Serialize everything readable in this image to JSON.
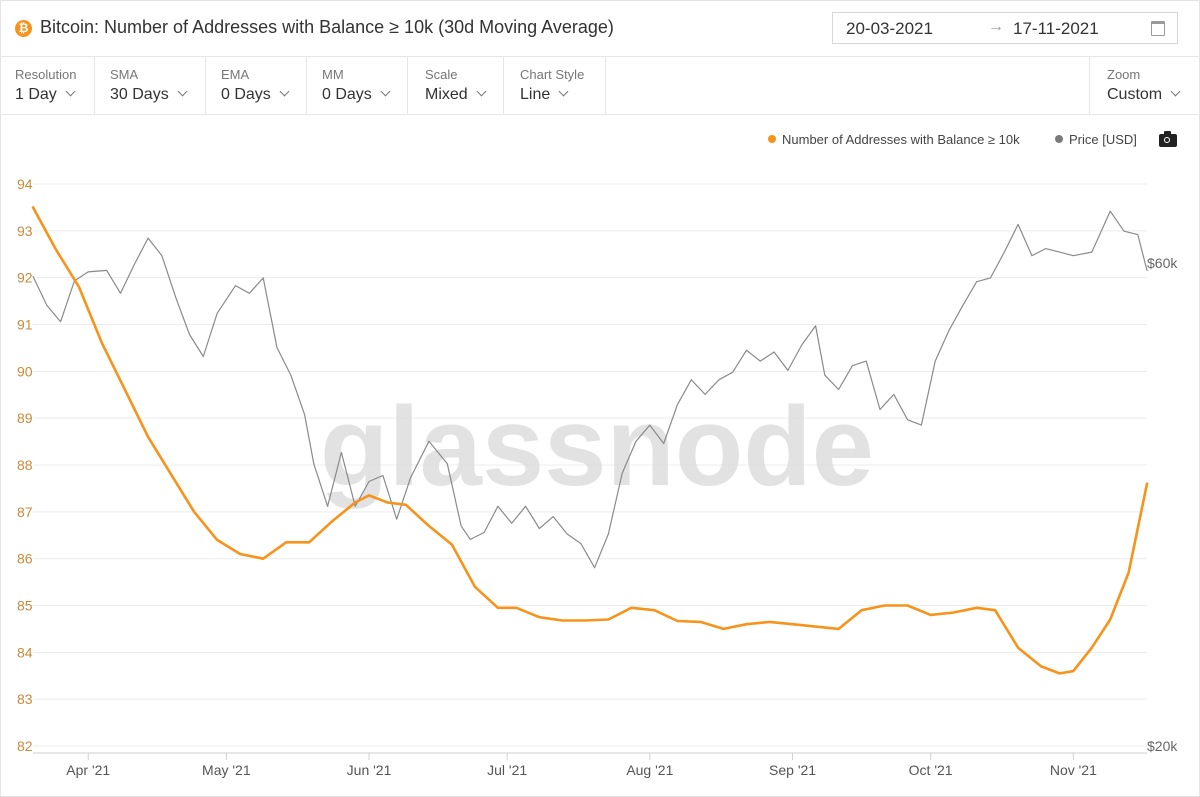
{
  "header": {
    "title": "Bitcoin: Number of Addresses with Balance ≥ 10k (30d Moving Average)",
    "asset_icon": "bitcoin-icon",
    "date_start": "20-03-2021",
    "date_end": "17-11-2021",
    "date_arrow": "→"
  },
  "controls": [
    {
      "label": "Resolution",
      "value": "1 Day"
    },
    {
      "label": "SMA",
      "value": "30 Days"
    },
    {
      "label": "EMA",
      "value": "0 Days"
    },
    {
      "label": "MM",
      "value": "0 Days"
    },
    {
      "label": "Scale",
      "value": "Mixed"
    },
    {
      "label": "Chart Style",
      "value": "Line"
    }
  ],
  "zoom": {
    "label": "Zoom",
    "value": "Custom"
  },
  "watermark": "glassnode",
  "colors": {
    "primary": "#f7931a",
    "price": "#8a8a8a",
    "grid": "#ececec"
  },
  "chart_data": {
    "type": "line",
    "legend_position": "top-right",
    "grid": true,
    "x_ticks": [
      "Apr '21",
      "May '21",
      "Jun '21",
      "Jul '21",
      "Aug '21",
      "Sep '21",
      "Oct '21",
      "Nov '21"
    ],
    "x_tick_dates": [
      "2021-04-01",
      "2021-05-01",
      "2021-06-01",
      "2021-07-01",
      "2021-08-01",
      "2021-09-01",
      "2021-10-01",
      "2021-11-01"
    ],
    "x_range": [
      "2021-03-20",
      "2021-11-17"
    ],
    "y_left": {
      "min": 82,
      "max": 94,
      "ticks": [
        "82",
        "83",
        "84",
        "85",
        "86",
        "87",
        "88",
        "89",
        "90",
        "91",
        "92",
        "93",
        "94"
      ]
    },
    "y_right": {
      "scale": "log",
      "ticks": [
        {
          "label": "$60k",
          "value": 60000
        },
        {
          "label": "$20k",
          "value": 20000
        }
      ]
    },
    "series": [
      {
        "name": "Number of Addresses with Balance ≥ 10k",
        "color": "#f7931a",
        "axis": "left",
        "points": [
          [
            "2021-03-20",
            93.5
          ],
          [
            "2021-03-25",
            92.6
          ],
          [
            "2021-03-30",
            91.8
          ],
          [
            "2021-04-04",
            90.6
          ],
          [
            "2021-04-09",
            89.6
          ],
          [
            "2021-04-14",
            88.6
          ],
          [
            "2021-04-19",
            87.8
          ],
          [
            "2021-04-24",
            87.0
          ],
          [
            "2021-04-29",
            86.4
          ],
          [
            "2021-05-04",
            86.1
          ],
          [
            "2021-05-09",
            86.0
          ],
          [
            "2021-05-14",
            86.35
          ],
          [
            "2021-05-19",
            86.35
          ],
          [
            "2021-05-24",
            86.8
          ],
          [
            "2021-05-29",
            87.2
          ],
          [
            "2021-06-01",
            87.35
          ],
          [
            "2021-06-05",
            87.2
          ],
          [
            "2021-06-09",
            87.15
          ],
          [
            "2021-06-14",
            86.7
          ],
          [
            "2021-06-19",
            86.3
          ],
          [
            "2021-06-24",
            85.4
          ],
          [
            "2021-06-29",
            84.95
          ],
          [
            "2021-07-03",
            84.95
          ],
          [
            "2021-07-08",
            84.75
          ],
          [
            "2021-07-13",
            84.68
          ],
          [
            "2021-07-18",
            84.68
          ],
          [
            "2021-07-23",
            84.7
          ],
          [
            "2021-07-28",
            84.95
          ],
          [
            "2021-08-02",
            84.9
          ],
          [
            "2021-08-07",
            84.67
          ],
          [
            "2021-08-12",
            84.65
          ],
          [
            "2021-08-17",
            84.5
          ],
          [
            "2021-08-22",
            84.6
          ],
          [
            "2021-08-27",
            84.65
          ],
          [
            "2021-09-01",
            84.6
          ],
          [
            "2021-09-06",
            84.55
          ],
          [
            "2021-09-11",
            84.5
          ],
          [
            "2021-09-16",
            84.9
          ],
          [
            "2021-09-21",
            85.0
          ],
          [
            "2021-09-26",
            85.0
          ],
          [
            "2021-10-01",
            84.8
          ],
          [
            "2021-10-06",
            84.85
          ],
          [
            "2021-10-11",
            84.95
          ],
          [
            "2021-10-15",
            84.9
          ],
          [
            "2021-10-20",
            84.1
          ],
          [
            "2021-10-25",
            83.7
          ],
          [
            "2021-10-29",
            83.55
          ],
          [
            "2021-11-01",
            83.6
          ],
          [
            "2021-11-05",
            84.1
          ],
          [
            "2021-11-09",
            84.7
          ],
          [
            "2021-11-13",
            85.7
          ],
          [
            "2021-11-17",
            87.6
          ]
        ]
      },
      {
        "name": "Price [USD]",
        "color": "#8a8a8a",
        "axis": "right",
        "points": [
          [
            "2021-03-20",
            58200
          ],
          [
            "2021-03-23",
            54500
          ],
          [
            "2021-03-26",
            52500
          ],
          [
            "2021-03-29",
            57600
          ],
          [
            "2021-04-01",
            58800
          ],
          [
            "2021-04-05",
            59000
          ],
          [
            "2021-04-08",
            56000
          ],
          [
            "2021-04-11",
            59800
          ],
          [
            "2021-04-14",
            63500
          ],
          [
            "2021-04-17",
            61000
          ],
          [
            "2021-04-20",
            55500
          ],
          [
            "2021-04-23",
            51000
          ],
          [
            "2021-04-26",
            48500
          ],
          [
            "2021-04-29",
            53500
          ],
          [
            "2021-05-03",
            57000
          ],
          [
            "2021-05-06",
            56000
          ],
          [
            "2021-05-09",
            58000
          ],
          [
            "2021-05-12",
            49500
          ],
          [
            "2021-05-15",
            46500
          ],
          [
            "2021-05-18",
            42500
          ],
          [
            "2021-05-20",
            38000
          ],
          [
            "2021-05-23",
            34500
          ],
          [
            "2021-05-26",
            39000
          ],
          [
            "2021-05-29",
            34500
          ],
          [
            "2021-06-01",
            36500
          ],
          [
            "2021-06-04",
            37000
          ],
          [
            "2021-06-07",
            33500
          ],
          [
            "2021-06-10",
            36800
          ],
          [
            "2021-06-14",
            40000
          ],
          [
            "2021-06-18",
            38000
          ],
          [
            "2021-06-21",
            33000
          ],
          [
            "2021-06-23",
            32000
          ],
          [
            "2021-06-26",
            32500
          ],
          [
            "2021-06-29",
            34500
          ],
          [
            "2021-07-02",
            33200
          ],
          [
            "2021-07-05",
            34500
          ],
          [
            "2021-07-08",
            32800
          ],
          [
            "2021-07-11",
            33700
          ],
          [
            "2021-07-14",
            32400
          ],
          [
            "2021-07-17",
            31700
          ],
          [
            "2021-07-20",
            30000
          ],
          [
            "2021-07-23",
            32400
          ],
          [
            "2021-07-26",
            37200
          ],
          [
            "2021-07-29",
            40000
          ],
          [
            "2021-08-01",
            41500
          ],
          [
            "2021-08-04",
            39800
          ],
          [
            "2021-08-07",
            43500
          ],
          [
            "2021-08-10",
            46000
          ],
          [
            "2021-08-13",
            44500
          ],
          [
            "2021-08-16",
            46000
          ],
          [
            "2021-08-19",
            46800
          ],
          [
            "2021-08-22",
            49200
          ],
          [
            "2021-08-25",
            48000
          ],
          [
            "2021-08-28",
            49000
          ],
          [
            "2021-08-31",
            47000
          ],
          [
            "2021-09-03",
            49800
          ],
          [
            "2021-09-06",
            52000
          ],
          [
            "2021-09-08",
            46500
          ],
          [
            "2021-09-11",
            45000
          ],
          [
            "2021-09-14",
            47500
          ],
          [
            "2021-09-17",
            48000
          ],
          [
            "2021-09-20",
            43000
          ],
          [
            "2021-09-23",
            44500
          ],
          [
            "2021-09-26",
            42000
          ],
          [
            "2021-09-29",
            41500
          ],
          [
            "2021-10-02",
            48000
          ],
          [
            "2021-10-05",
            51500
          ],
          [
            "2021-10-08",
            54500
          ],
          [
            "2021-10-11",
            57500
          ],
          [
            "2021-10-14",
            58000
          ],
          [
            "2021-10-17",
            61500
          ],
          [
            "2021-10-20",
            65500
          ],
          [
            "2021-10-23",
            61000
          ],
          [
            "2021-10-26",
            62000
          ],
          [
            "2021-10-29",
            61500
          ],
          [
            "2021-11-01",
            61000
          ],
          [
            "2021-11-05",
            61500
          ],
          [
            "2021-11-09",
            67500
          ],
          [
            "2021-11-12",
            64500
          ],
          [
            "2021-11-15",
            64000
          ],
          [
            "2021-11-17",
            59000
          ]
        ]
      }
    ]
  }
}
